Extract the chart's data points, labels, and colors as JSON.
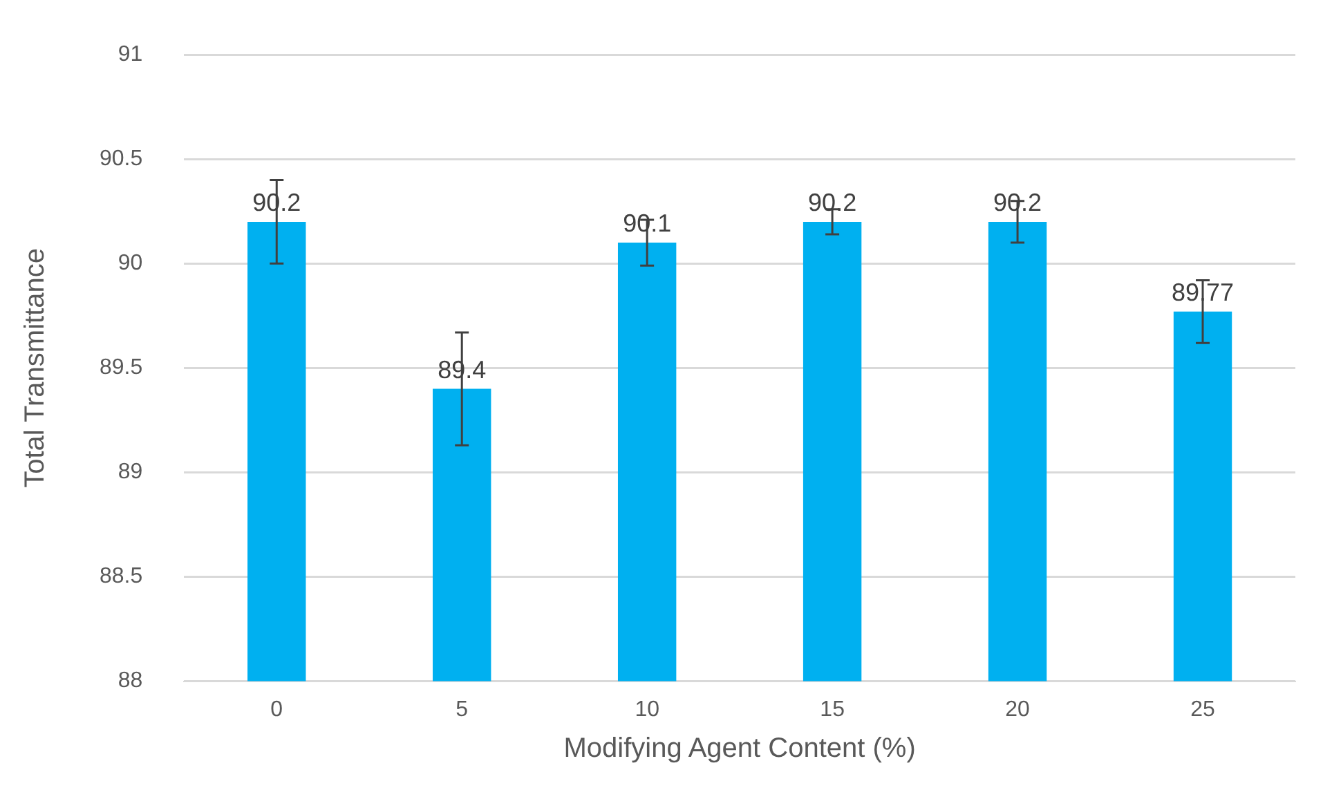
{
  "chart_data": {
    "type": "bar",
    "xlabel": "Modifying Agent Content (%)",
    "ylabel": "Total Transmittance",
    "categories": [
      "0",
      "5",
      "10",
      "15",
      "20",
      "25"
    ],
    "values": [
      90.2,
      89.4,
      90.1,
      90.2,
      90.2,
      89.77
    ],
    "errors": [
      0.2,
      0.27,
      0.11,
      0.06,
      0.1,
      0.15
    ],
    "color": "#00b0f0",
    "ylim": [
      88,
      91
    ],
    "yticks": [
      88,
      88.5,
      89,
      89.5,
      90,
      90.5,
      91
    ],
    "grid": "y",
    "data_labels": true,
    "legend": false
  }
}
